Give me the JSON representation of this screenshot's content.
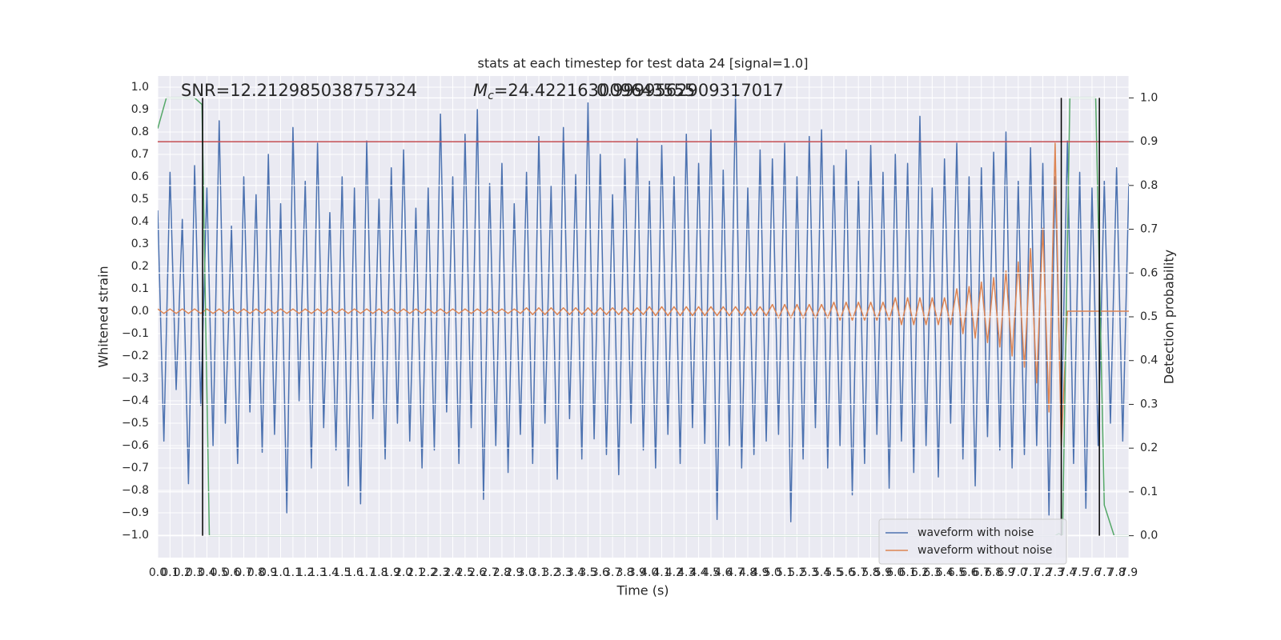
{
  "chart_data": {
    "type": "line",
    "title": "stats at each timestep for test data 24 [signal=1.0]",
    "xlabel": "Time (s)",
    "ylabel": "Whitened strain",
    "y2label": "Detection probability",
    "annotations": {
      "snr": "SNR=12.212985038757324",
      "mc_symbol": "M",
      "mc_subscript": "c",
      "mc_text": "=24.422163009643555",
      "probability": "0.9999562909317017"
    },
    "grid": true,
    "legend": "lower right",
    "xlim": [
      0,
      7.9
    ],
    "ylim": [
      -1.1,
      1.05
    ],
    "y2lim": [
      -0.05,
      1.05
    ],
    "xticks": [
      {
        "value": 0,
        "label": "0.0"
      },
      0.1,
      0.2,
      0.3,
      0.4,
      0.5,
      0.6,
      0.7,
      0.8,
      0.9,
      {
        "value": 1,
        "label": "1.0"
      },
      1.1,
      1.2,
      1.3,
      1.4,
      1.5,
      1.6,
      1.7,
      1.8,
      1.9,
      {
        "value": 2,
        "label": "2.0"
      },
      2.1,
      2.2,
      2.3,
      2.4,
      2.5,
      2.6,
      2.7,
      2.8,
      2.9,
      {
        "value": 3,
        "label": "3.0"
      },
      3.1,
      3.2,
      3.3,
      3.4,
      3.5,
      3.6,
      3.7,
      3.8,
      3.9,
      {
        "value": 4,
        "label": "4.0"
      },
      4.1,
      4.2,
      4.3,
      4.4,
      4.5,
      4.6,
      4.7,
      4.8,
      4.9,
      {
        "value": 5,
        "label": "5.0"
      },
      5.1,
      5.2,
      5.3,
      5.4,
      5.5,
      5.6,
      5.7,
      5.8,
      5.9,
      {
        "value": 6,
        "label": "6.0"
      },
      6.1,
      6.2,
      6.3,
      6.4,
      6.5,
      6.6,
      6.7,
      6.8,
      6.9,
      {
        "value": 7,
        "label": "7.0"
      },
      7.1,
      7.2,
      7.3,
      7.4,
      7.5,
      7.6,
      7.7,
      7.8,
      7.9
    ],
    "yticks": [
      {
        "value": -1,
        "label": "−1.0"
      },
      {
        "value": -0.9,
        "label": "−0.9"
      },
      {
        "value": -0.8,
        "label": "−0.8"
      },
      {
        "value": -0.7,
        "label": "−0.7"
      },
      {
        "value": -0.6,
        "label": "−0.6"
      },
      {
        "value": -0.5,
        "label": "−0.5"
      },
      {
        "value": -0.4,
        "label": "−0.4"
      },
      {
        "value": -0.3,
        "label": "−0.3"
      },
      {
        "value": -0.2,
        "label": "−0.2"
      },
      {
        "value": -0.1,
        "label": "−0.1"
      },
      {
        "value": 0,
        "label": "0.0"
      },
      0.1,
      0.2,
      0.3,
      0.4,
      0.5,
      0.6,
      0.7,
      0.8,
      0.9,
      {
        "value": 1,
        "label": "1.0"
      }
    ],
    "y2ticks": [
      {
        "value": 0,
        "label": "0.0"
      },
      0.1,
      0.2,
      0.3,
      0.4,
      0.5,
      0.6,
      0.7,
      0.8,
      0.9,
      {
        "value": 1,
        "label": "1.0"
      }
    ],
    "x": [
      0,
      0.05,
      0.1,
      0.15,
      0.2,
      0.25,
      0.3,
      0.35,
      0.4,
      0.45,
      0.5,
      0.55,
      0.6,
      0.65,
      0.7,
      0.75,
      0.8,
      0.85,
      0.9,
      0.95,
      1,
      1.05,
      1.1,
      1.15,
      1.2,
      1.25,
      1.3,
      1.35,
      1.4,
      1.45,
      1.5,
      1.55,
      1.6,
      1.65,
      1.7,
      1.75,
      1.8,
      1.85,
      1.9,
      1.95,
      2,
      2.05,
      2.1,
      2.15,
      2.2,
      2.25,
      2.3,
      2.35,
      2.4,
      2.45,
      2.5,
      2.55,
      2.6,
      2.65,
      2.7,
      2.75,
      2.8,
      2.85,
      2.9,
      2.95,
      3,
      3.05,
      3.1,
      3.15,
      3.2,
      3.25,
      3.3,
      3.35,
      3.4,
      3.45,
      3.5,
      3.55,
      3.6,
      3.65,
      3.7,
      3.75,
      3.8,
      3.85,
      3.9,
      3.95,
      4,
      4.05,
      4.1,
      4.15,
      4.2,
      4.25,
      4.3,
      4.35,
      4.4,
      4.45,
      4.5,
      4.55,
      4.6,
      4.65,
      4.7,
      4.75,
      4.8,
      4.85,
      4.9,
      4.95,
      5,
      5.05,
      5.1,
      5.15,
      5.2,
      5.25,
      5.3,
      5.35,
      5.4,
      5.45,
      5.5,
      5.55,
      5.6,
      5.65,
      5.7,
      5.75,
      5.8,
      5.85,
      5.9,
      5.95,
      6,
      6.05,
      6.1,
      6.15,
      6.2,
      6.25,
      6.3,
      6.35,
      6.4,
      6.45,
      6.5,
      6.55,
      6.6,
      6.65,
      6.7,
      6.75,
      6.8,
      6.85,
      6.9,
      6.95,
      7,
      7.05,
      7.1,
      7.15,
      7.2,
      7.25,
      7.3,
      7.35,
      7.4,
      7.45,
      7.5,
      7.55,
      7.6,
      7.65,
      7.7,
      7.75,
      7.8,
      7.85,
      7.9
    ],
    "series": [
      {
        "name": "waveform with noise",
        "color": "#4c72b0",
        "values": [
          0.45,
          -0.58,
          0.62,
          -0.35,
          0.41,
          -0.77,
          0.65,
          -0.42,
          0.55,
          -0.6,
          0.85,
          -0.5,
          0.38,
          -0.68,
          0.6,
          -0.45,
          0.52,
          -0.63,
          0.7,
          -0.55,
          0.48,
          -0.9,
          0.82,
          -0.4,
          0.58,
          -0.7,
          0.75,
          -0.52,
          0.44,
          -0.62,
          0.6,
          -0.78,
          0.55,
          -0.86,
          0.76,
          -0.48,
          0.5,
          -0.66,
          0.64,
          -0.5,
          0.72,
          -0.58,
          0.46,
          -0.7,
          0.55,
          -0.62,
          0.88,
          -0.45,
          0.6,
          -0.68,
          0.79,
          -0.52,
          0.9,
          -0.84,
          0.57,
          -0.6,
          0.66,
          -0.72,
          0.48,
          -0.55,
          0.62,
          -0.68,
          0.78,
          -0.5,
          0.56,
          -0.75,
          0.82,
          -0.48,
          0.61,
          -0.66,
          0.93,
          -0.57,
          0.7,
          -0.64,
          0.52,
          -0.73,
          0.68,
          -0.5,
          0.77,
          -0.62,
          0.58,
          -0.7,
          0.74,
          -0.55,
          0.6,
          -0.68,
          0.79,
          -0.52,
          0.66,
          -0.59,
          0.81,
          -0.93,
          0.63,
          -0.6,
          0.96,
          -0.7,
          0.55,
          -0.64,
          0.72,
          -0.58,
          0.68,
          -0.55,
          0.75,
          -0.94,
          0.6,
          -0.66,
          0.78,
          -0.52,
          0.81,
          -0.7,
          0.65,
          -0.6,
          0.72,
          -0.82,
          0.58,
          -0.68,
          0.74,
          -0.55,
          0.62,
          -0.79,
          0.7,
          -0.58,
          0.66,
          -0.72,
          0.87,
          -0.6,
          0.55,
          -0.74,
          0.68,
          -0.5,
          0.75,
          -0.66,
          0.6,
          -0.78,
          0.64,
          -0.56,
          0.71,
          -0.62,
          0.8,
          -0.7,
          0.58,
          -0.64,
          0.73,
          -0.6,
          0.66,
          -0.91,
          0.6,
          -0.52,
          0.76,
          -0.68,
          0.62,
          -0.88,
          0.55,
          -0.6,
          0.58,
          -0.5,
          0.64,
          -0.58,
          0.57
        ]
      },
      {
        "name": "waveform without noise",
        "color": "#dd8452",
        "values": [
          0.01,
          -0.01,
          0.01,
          -0.01,
          0.01,
          -0.01,
          0.01,
          -0.01,
          0.01,
          -0.01,
          0.01,
          -0.01,
          0.01,
          -0.01,
          0.01,
          -0.01,
          0.01,
          -0.01,
          0.01,
          -0.01,
          0.01,
          -0.01,
          0.01,
          -0.01,
          0.01,
          -0.01,
          0.01,
          -0.01,
          0.01,
          -0.01,
          0.01,
          -0.01,
          0.01,
          -0.01,
          0.01,
          -0.01,
          0.01,
          -0.01,
          0.01,
          -0.01,
          0.01,
          -0.01,
          0.01,
          -0.01,
          0.01,
          -0.01,
          0.01,
          -0.01,
          0.01,
          -0.01,
          0.01,
          -0.01,
          0.01,
          -0.01,
          0.01,
          -0.01,
          0.01,
          -0.01,
          0.01,
          -0.01,
          0.015,
          -0.015,
          0.015,
          -0.015,
          0.015,
          -0.015,
          0.015,
          -0.015,
          0.015,
          -0.015,
          0.015,
          -0.015,
          0.015,
          -0.015,
          0.015,
          -0.015,
          0.015,
          -0.015,
          0.015,
          -0.015,
          0.02,
          -0.02,
          0.02,
          -0.02,
          0.02,
          -0.02,
          0.02,
          -0.02,
          0.02,
          -0.02,
          0.02,
          -0.02,
          0.02,
          -0.02,
          0.02,
          -0.02,
          0.02,
          -0.02,
          0.02,
          -0.02,
          0.03,
          -0.03,
          0.03,
          -0.03,
          0.03,
          -0.03,
          0.03,
          -0.03,
          0.03,
          -0.03,
          0.04,
          -0.04,
          0.04,
          -0.04,
          0.04,
          -0.04,
          0.04,
          -0.04,
          0.04,
          -0.04,
          0.06,
          -0.06,
          0.06,
          -0.06,
          0.06,
          -0.06,
          0.06,
          -0.06,
          0.06,
          -0.06,
          0.1,
          -0.1,
          0.11,
          -0.12,
          0.13,
          -0.14,
          0.15,
          -0.16,
          0.18,
          -0.2,
          0.22,
          -0.25,
          0.28,
          -0.32,
          0.37,
          -0.45,
          0.75,
          -0.6,
          0,
          0,
          0,
          0,
          0,
          0,
          0,
          0,
          0,
          0,
          0
        ]
      },
      {
        "color": "#55a868",
        "axis": "y2",
        "x": [
          0,
          0.07,
          0.15,
          0.3,
          0.36,
          0.42,
          7.3,
          7.33,
          7.36,
          7.42,
          7.63,
          7.7,
          7.78,
          7.9
        ],
        "values": [
          0.93,
          1,
          1,
          1,
          0.985,
          0,
          0,
          0.005,
          0,
          1,
          1,
          0.07,
          0,
          0
        ]
      }
    ],
    "hlines": [
      {
        "value": 0.9,
        "color": "#c44e52",
        "axis": "y2"
      }
    ],
    "vlines": {
      "x": [
        0.365,
        7.35,
        7.66
      ],
      "ymin": 0,
      "ymax": 1,
      "axis": "y2",
      "color": "#000000"
    }
  }
}
